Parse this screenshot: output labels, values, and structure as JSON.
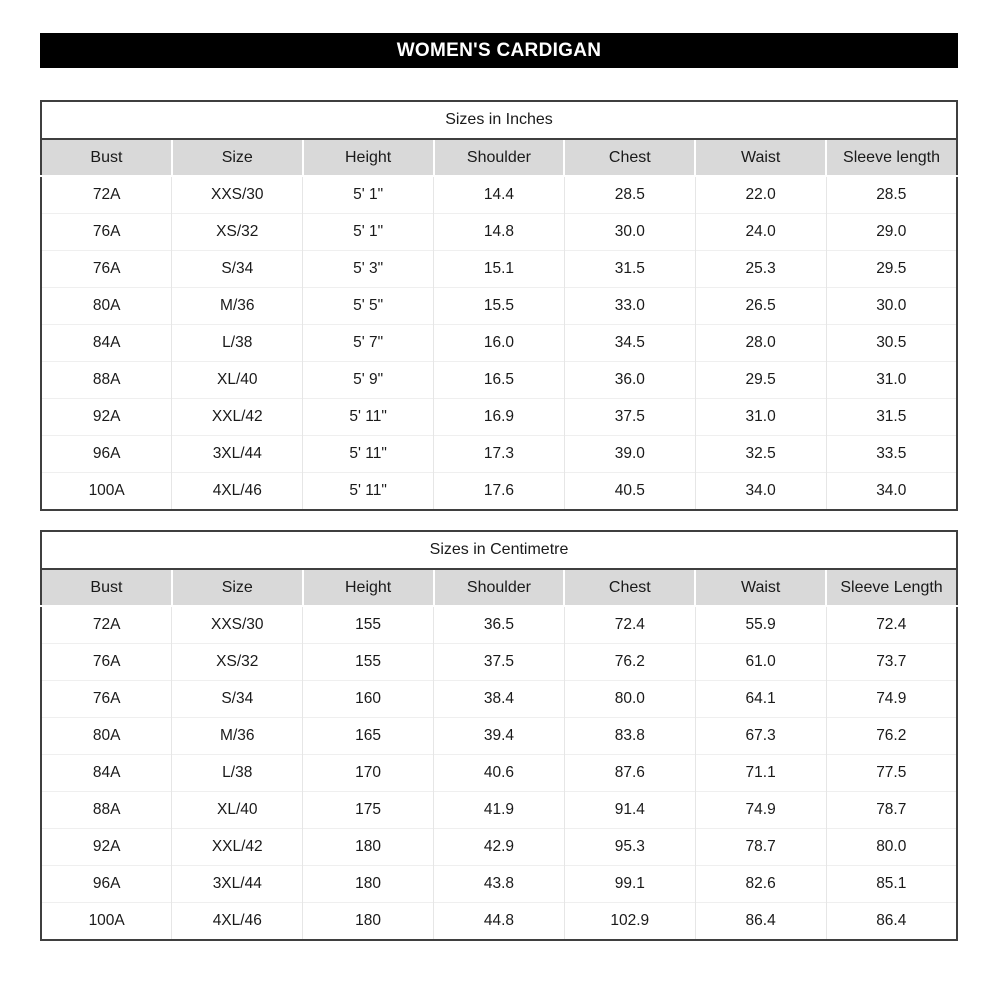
{
  "page": {
    "title": "WOMEN'S CARDIGAN"
  },
  "colors": {
    "title_bar_bg": "#000000",
    "title_bar_text": "#ffffff",
    "header_row_bg": "#d9d9d9",
    "table_border_dark": "#3f3f3f",
    "grid_line_light": "#e6e6e6",
    "text": "#1a1a1a"
  },
  "tables": [
    {
      "caption": "Sizes in Inches",
      "columns": [
        "Bust",
        "Size",
        "Height",
        "Shoulder",
        "Chest",
        "Waist",
        "Sleeve length"
      ],
      "rows": [
        [
          "72A",
          "XXS/30",
          "5' 1\"",
          "14.4",
          "28.5",
          "22.0",
          "28.5"
        ],
        [
          "76A",
          "XS/32",
          "5' 1\"",
          "14.8",
          "30.0",
          "24.0",
          "29.0"
        ],
        [
          "76A",
          "S/34",
          "5' 3\"",
          "15.1",
          "31.5",
          "25.3",
          "29.5"
        ],
        [
          "80A",
          "M/36",
          "5' 5\"",
          "15.5",
          "33.0",
          "26.5",
          "30.0"
        ],
        [
          "84A",
          "L/38",
          "5' 7\"",
          "16.0",
          "34.5",
          "28.0",
          "30.5"
        ],
        [
          "88A",
          "XL/40",
          "5' 9\"",
          "16.5",
          "36.0",
          "29.5",
          "31.0"
        ],
        [
          "92A",
          "XXL/42",
          "5' 11\"",
          "16.9",
          "37.5",
          "31.0",
          "31.5"
        ],
        [
          "96A",
          "3XL/44",
          "5' 11\"",
          "17.3",
          "39.0",
          "32.5",
          "33.5"
        ],
        [
          "100A",
          "4XL/46",
          "5' 11\"",
          "17.6",
          "40.5",
          "34.0",
          "34.0"
        ]
      ]
    },
    {
      "caption": "Sizes in Centimetre",
      "columns": [
        "Bust",
        "Size",
        "Height",
        "Shoulder",
        "Chest",
        "Waist",
        "Sleeve Length"
      ],
      "rows": [
        [
          "72A",
          "XXS/30",
          "155",
          "36.5",
          "72.4",
          "55.9",
          "72.4"
        ],
        [
          "76A",
          "XS/32",
          "155",
          "37.5",
          "76.2",
          "61.0",
          "73.7"
        ],
        [
          "76A",
          "S/34",
          "160",
          "38.4",
          "80.0",
          "64.1",
          "74.9"
        ],
        [
          "80A",
          "M/36",
          "165",
          "39.4",
          "83.8",
          "67.3",
          "76.2"
        ],
        [
          "84A",
          "L/38",
          "170",
          "40.6",
          "87.6",
          "71.1",
          "77.5"
        ],
        [
          "88A",
          "XL/40",
          "175",
          "41.9",
          "91.4",
          "74.9",
          "78.7"
        ],
        [
          "92A",
          "XXL/42",
          "180",
          "42.9",
          "95.3",
          "78.7",
          "80.0"
        ],
        [
          "96A",
          "3XL/44",
          "180",
          "43.8",
          "99.1",
          "82.6",
          "85.1"
        ],
        [
          "100A",
          "4XL/46",
          "180",
          "44.8",
          "102.9",
          "86.4",
          "86.4"
        ]
      ]
    }
  ]
}
